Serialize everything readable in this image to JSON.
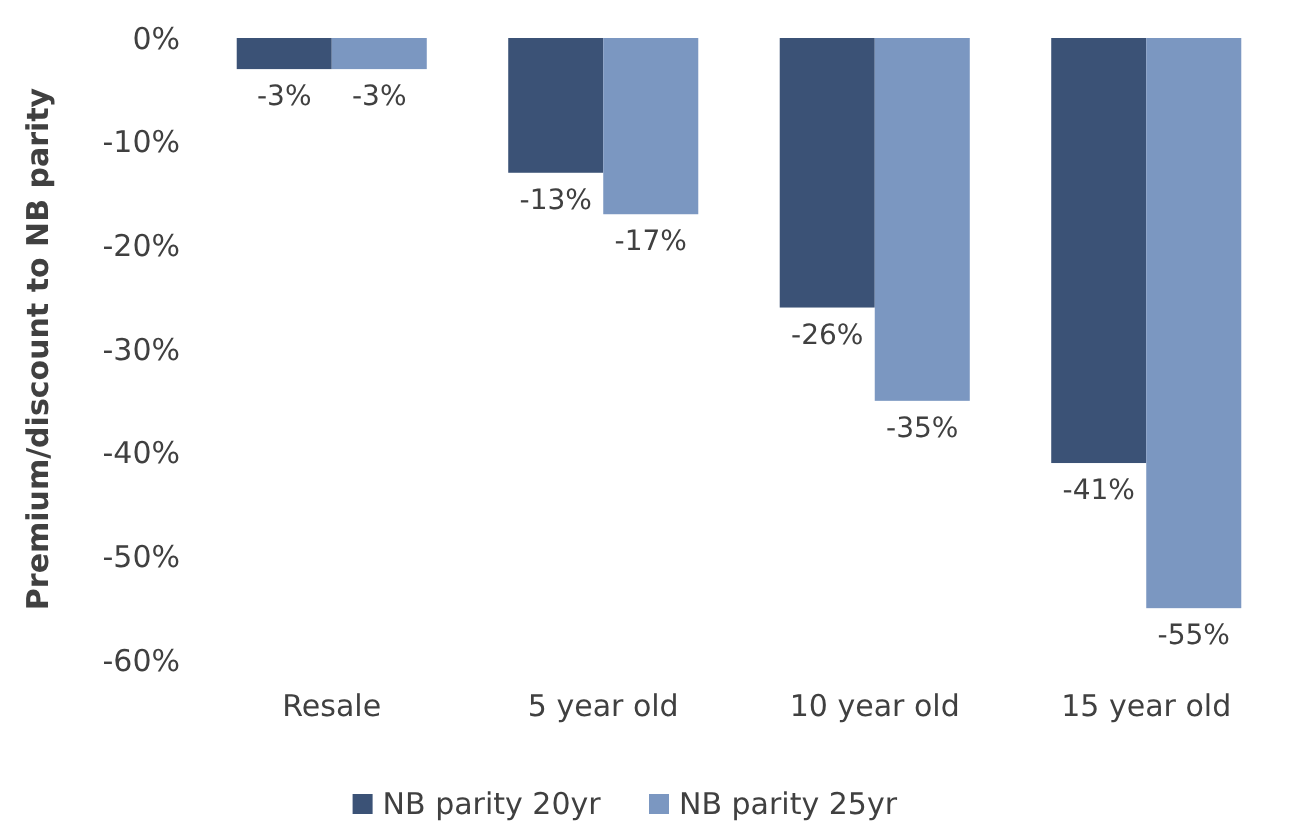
{
  "chart_data": {
    "type": "bar",
    "ylabel": "Premium/discount to NB parity",
    "categories": [
      "Resale",
      "5 year old",
      "10 year old",
      "15 year old"
    ],
    "series": [
      {
        "name": "NB parity 20yr",
        "color": "#3b5276",
        "values": [
          -3,
          -13,
          -26,
          -41
        ],
        "value_labels": [
          "-3%",
          "-13%",
          "-26%",
          "-41%"
        ]
      },
      {
        "name": "NB parity 25yr",
        "color": "#7b97c1",
        "values": [
          -3,
          -17,
          -35,
          -55
        ],
        "value_labels": [
          "-3%",
          "-17%",
          "-35%",
          "-55%"
        ]
      }
    ],
    "ylim": [
      -60,
      0
    ],
    "yticks": [
      {
        "value": -60,
        "label": "-60%"
      },
      {
        "value": -50,
        "label": "-50%"
      },
      {
        "value": -40,
        "label": "-40%"
      },
      {
        "value": -30,
        "label": "-30%"
      },
      {
        "value": -20,
        "label": "-20%"
      },
      {
        "value": -10,
        "label": "-10%"
      },
      {
        "value": 0,
        "label": "0%"
      }
    ],
    "grid": false,
    "legend": "bottom"
  }
}
